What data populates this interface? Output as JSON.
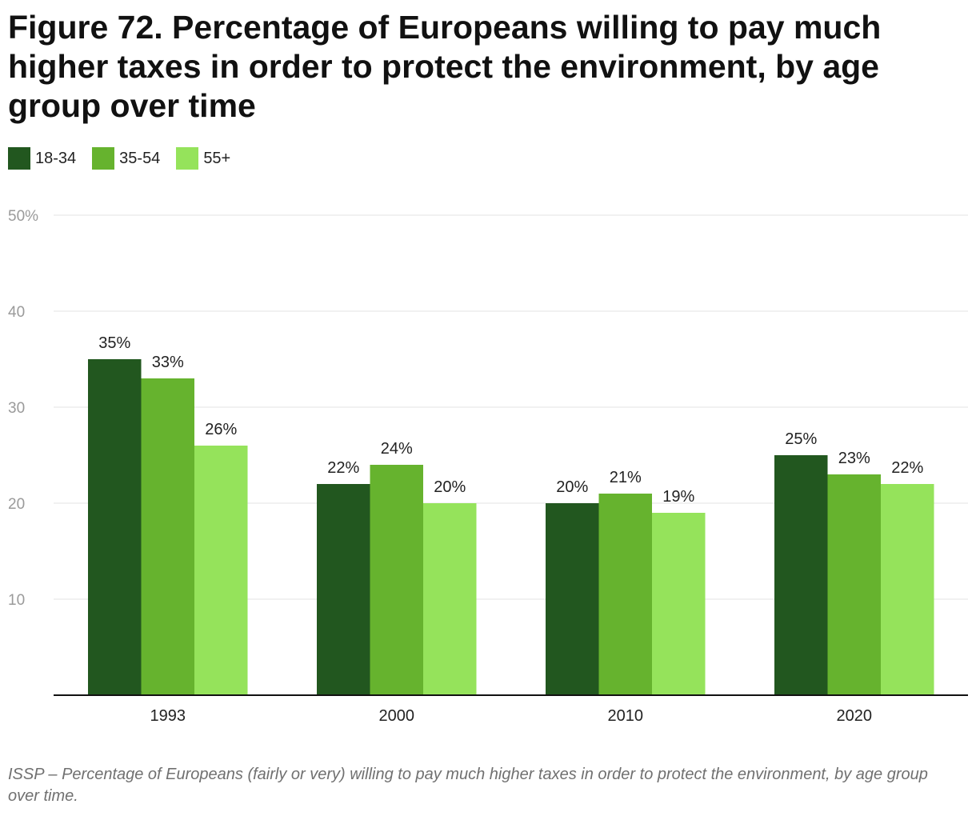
{
  "chart_data": {
    "type": "bar",
    "title": "Figure 72. Percentage of Europeans willing to pay much higher taxes in order to protect the environment, by age group over time",
    "categories": [
      "1993",
      "2000",
      "2010",
      "2020"
    ],
    "series": [
      {
        "name": "18-34",
        "color": "#22571f",
        "values": [
          35,
          22,
          20,
          25
        ],
        "labels": [
          "35%",
          "22%",
          "20%",
          "25%"
        ]
      },
      {
        "name": "35-54",
        "color": "#66b32e",
        "values": [
          33,
          24,
          21,
          23
        ],
        "labels": [
          "33%",
          "24%",
          "21%",
          "23%"
        ]
      },
      {
        "name": "55+",
        "color": "#95e35b",
        "values": [
          26,
          20,
          19,
          22
        ],
        "labels": [
          "26%",
          "20%",
          "19%",
          "22%"
        ]
      }
    ],
    "ylim": [
      0,
      50
    ],
    "yticks": [
      10,
      20,
      30,
      40,
      50
    ],
    "ytick_labels": [
      "10",
      "20",
      "30",
      "40",
      "50%"
    ],
    "grid": true,
    "legend_position": "top-left",
    "xlabel": "",
    "ylabel": ""
  },
  "source_note": "ISSP – Percentage of Europeans (fairly or very) willing to pay much higher taxes in order to protect the environment, by age group over time."
}
